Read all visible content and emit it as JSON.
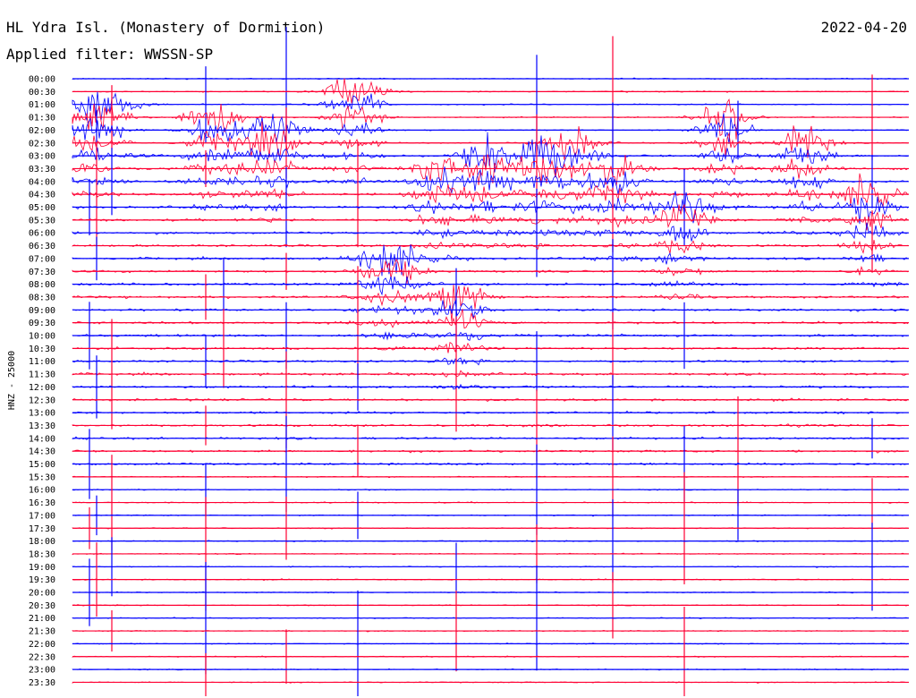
{
  "chart_data": {
    "type": "line",
    "title": "HL Ydra Isl. (Monastery of Dormition)",
    "subtitle": "Applied filter: WWSSN-SP",
    "date": "2022-04-20",
    "ylabel": "HNZ - 25000",
    "series_colors": [
      "#0000ff",
      "#ff0033"
    ],
    "times": [
      "00:00",
      "00:30",
      "01:00",
      "01:30",
      "02:00",
      "02:30",
      "03:00",
      "03:30",
      "04:00",
      "04:30",
      "05:00",
      "05:30",
      "06:00",
      "06:30",
      "07:00",
      "07:30",
      "08:00",
      "08:30",
      "09:00",
      "09:30",
      "10:00",
      "10:30",
      "11:00",
      "11:30",
      "12:00",
      "12:30",
      "13:00",
      "13:30",
      "14:00",
      "14:30",
      "15:00",
      "15:30",
      "16:00",
      "16:30",
      "17:00",
      "17:30",
      "18:00",
      "18:30",
      "19:00",
      "19:30",
      "20:00",
      "20:30",
      "21:00",
      "21:30",
      "22:00",
      "22:30",
      "23:00",
      "23:30"
    ]
  }
}
